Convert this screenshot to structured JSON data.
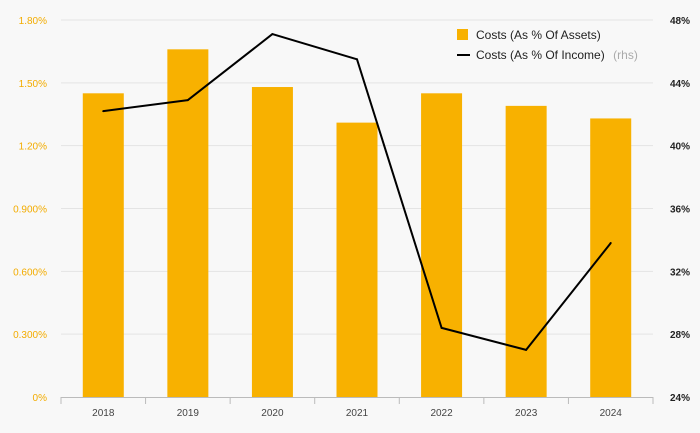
{
  "chart_data": {
    "type": "bar",
    "categories": [
      "2018",
      "2019",
      "2020",
      "2021",
      "2022",
      "2023",
      "2024"
    ],
    "series": [
      {
        "name": "Costs (As % Of Assets)",
        "type": "bar",
        "axis": "left",
        "color": "#f8b100",
        "values": [
          1.45,
          1.66,
          1.48,
          1.31,
          1.45,
          1.39,
          1.33
        ]
      },
      {
        "name": "Costs (As % Of Income)",
        "name_suffix": "(rhs)",
        "type": "line",
        "axis": "right",
        "color": "#000000",
        "values": [
          42.2,
          42.9,
          47.1,
          45.5,
          28.4,
          27.0,
          33.8
        ]
      }
    ],
    "y_left": {
      "range": [
        0,
        1.8
      ],
      "ticks": [
        0,
        0.3,
        0.6,
        0.9,
        1.2,
        1.5,
        1.8
      ],
      "tick_labels": [
        "0%",
        "0.300%",
        "0.600%",
        "0.900%",
        "1.20%",
        "1.50%",
        "1.80%"
      ],
      "label_color": "#f3ac00"
    },
    "y_right": {
      "range": [
        24,
        48
      ],
      "ticks": [
        24,
        28,
        32,
        36,
        40,
        44,
        48
      ],
      "tick_labels": [
        "24%",
        "28%",
        "32%",
        "36%",
        "40%",
        "44%",
        "48%"
      ]
    },
    "grid": true,
    "legend": "top-right"
  }
}
